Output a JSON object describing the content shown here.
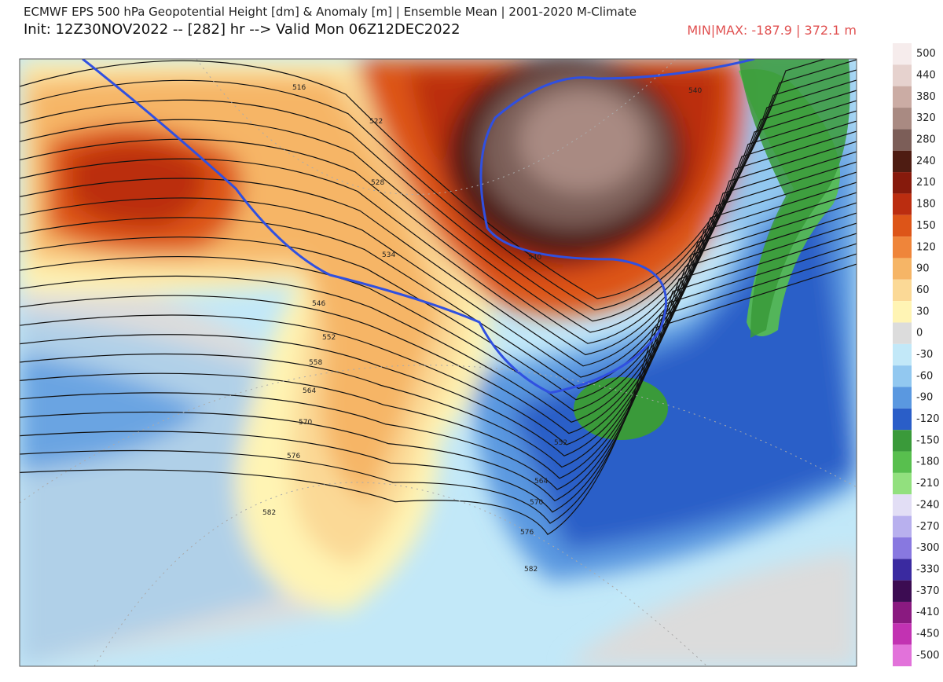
{
  "header": {
    "title": "ECMWF EPS 500 hPa Geopotential Height [dm] & Anomaly [m] | Ensemble Mean | 2001-2020 M-Climate",
    "subtitle": "Init: 12Z30NOV2022 -- [282] hr --> Valid Mon 06Z12DEC2022",
    "minmax": "MIN|MAX: -187.9 | 372.1 m"
  },
  "map": {
    "contour_labels": [
      "516",
      "522",
      "528",
      "534",
      "540",
      "546",
      "552",
      "558",
      "564",
      "570",
      "576",
      "582",
      "540",
      "552",
      "564",
      "570",
      "576",
      "582"
    ]
  },
  "colorbar": {
    "labels": [
      500,
      440,
      380,
      320,
      280,
      240,
      210,
      180,
      150,
      120,
      90,
      60,
      30,
      0,
      -30,
      -60,
      -90,
      -120,
      -150,
      -180,
      -210,
      -240,
      -270,
      -300,
      -330,
      -370,
      -410,
      -450,
      -500
    ],
    "colors": [
      "#f6ecec",
      "#e6d2ce",
      "#cbaca4",
      "#a98a82",
      "#7c5e58",
      "#4e1c12",
      "#861a0c",
      "#bb2d10",
      "#dd5518",
      "#ef853a",
      "#f6b566",
      "#fbd996",
      "#fff4b4",
      "#dcdcdc",
      "#c2e8f8",
      "#92c8f0",
      "#5a98e0",
      "#2a5ec8",
      "#3a9a3a",
      "#58bf4e",
      "#92e07e",
      "#e2def5",
      "#b8b0ee",
      "#8878e0",
      "#3a2aa0",
      "#3c0c52",
      "#8a1a80",
      "#c232b2",
      "#e272da"
    ]
  }
}
